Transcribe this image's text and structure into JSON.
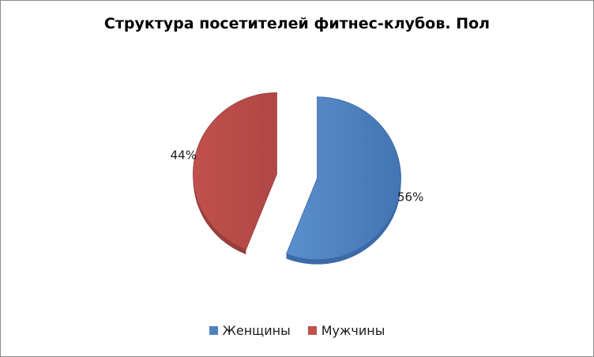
{
  "chart_data": {
    "type": "pie",
    "title": "Структура посетителей фитнес-клубов. Пол",
    "categories": [
      "Женщины",
      "Мужчины"
    ],
    "values": [
      56,
      44
    ],
    "data_labels": [
      "56%",
      "44%"
    ],
    "colors": [
      "#4f81bd",
      "#c0504d"
    ],
    "legend_position": "bottom",
    "exploded": true
  }
}
